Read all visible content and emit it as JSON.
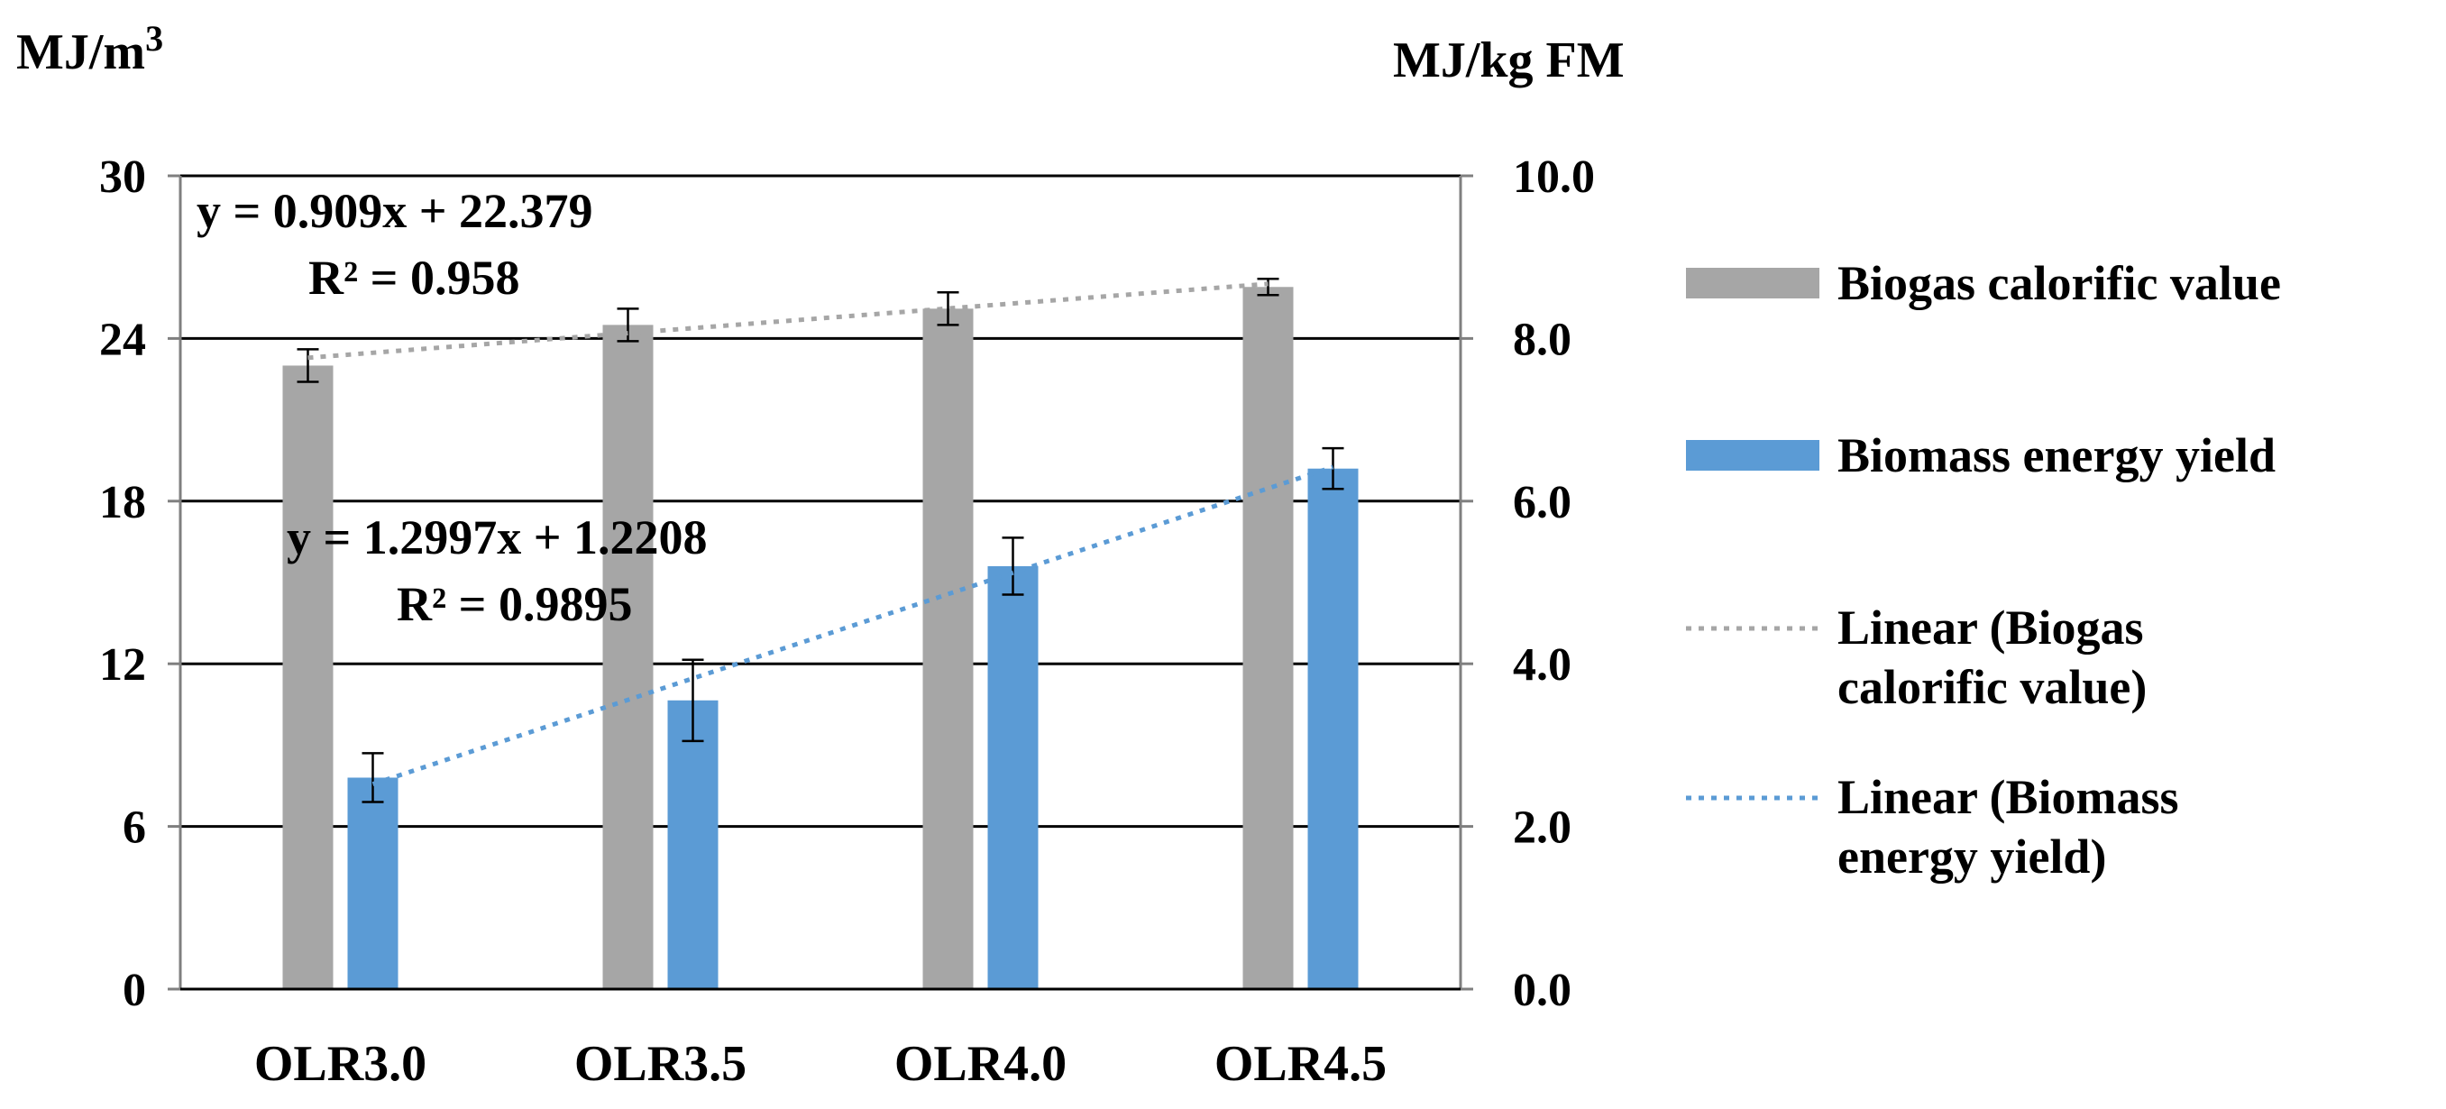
{
  "chart_data": {
    "type": "bar",
    "categories": [
      "OLR3.0",
      "OLR3.5",
      "OLR4.0",
      "OLR4.5"
    ],
    "left_axis": {
      "unit_label": "MJ/m",
      "unit_superscript": "3",
      "ylim": [
        0,
        30
      ],
      "ticks": [
        "0",
        "6",
        "12",
        "18",
        "24",
        "30"
      ]
    },
    "right_axis": {
      "unit_label": "MJ/kg FM",
      "ylim": [
        0,
        10
      ],
      "ticks": [
        "0.0",
        "2.0",
        "4.0",
        "6.0",
        "8.0",
        "10.0"
      ]
    },
    "series": [
      {
        "name": "Biogas calorific value",
        "axis": "left",
        "color": "#a6a6a6",
        "values": [
          23.0,
          24.5,
          25.1,
          25.9
        ],
        "errors": [
          0.6,
          0.6,
          0.6,
          0.3
        ]
      },
      {
        "name": "Biomass energy yield",
        "axis": "right",
        "color": "#5b9bd5",
        "values": [
          2.6,
          3.55,
          5.2,
          6.4
        ],
        "errors": [
          0.3,
          0.5,
          0.35,
          0.25
        ]
      }
    ],
    "trendlines": [
      {
        "name": "Linear (Biogas calorific value)",
        "axis": "left",
        "color": "#a6a6a6",
        "equation": "y = 0.909x + 22.379",
        "r2": "R² = 0.958",
        "slope": 0.909,
        "intercept": 22.379
      },
      {
        "name": "Linear (Biomass energy yield)",
        "axis": "right",
        "color": "#5b9bd5",
        "equation": "y = 1.2997x + 1.2208",
        "r2": "R² = 0.9895",
        "slope": 1.2997,
        "intercept": 1.2208
      }
    ],
    "grid": true,
    "legend": "right"
  }
}
